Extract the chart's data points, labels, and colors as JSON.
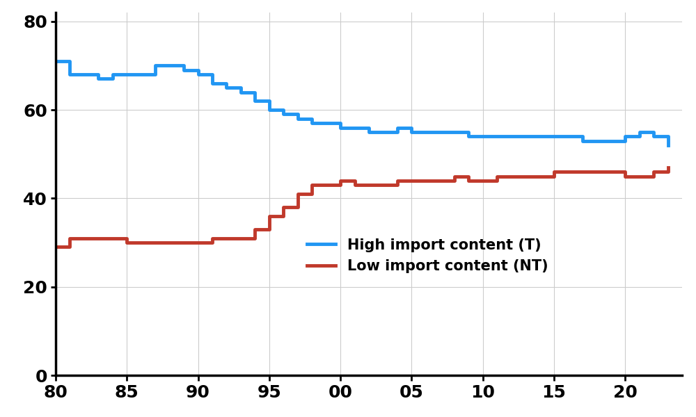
{
  "high_import_years": [
    1980,
    1981,
    1982,
    1983,
    1984,
    1985,
    1986,
    1987,
    1988,
    1989,
    1990,
    1991,
    1992,
    1993,
    1994,
    1995,
    1996,
    1997,
    1998,
    1999,
    2000,
    2001,
    2002,
    2003,
    2004,
    2005,
    2006,
    2007,
    2008,
    2009,
    2010,
    2011,
    2012,
    2013,
    2014,
    2015,
    2016,
    2017,
    2018,
    2019,
    2020,
    2021,
    2022,
    2023
  ],
  "high_import_values": [
    71,
    68,
    68,
    67,
    68,
    68,
    68,
    70,
    70,
    69,
    68,
    66,
    65,
    64,
    62,
    60,
    59,
    58,
    57,
    57,
    56,
    56,
    55,
    55,
    56,
    55,
    55,
    55,
    55,
    54,
    54,
    54,
    54,
    54,
    54,
    54,
    54,
    53,
    53,
    53,
    54,
    55,
    54,
    52
  ],
  "low_import_values": [
    29,
    31,
    31,
    31,
    31,
    30,
    30,
    30,
    30,
    30,
    30,
    31,
    31,
    31,
    33,
    36,
    38,
    41,
    43,
    43,
    44,
    43,
    43,
    43,
    44,
    44,
    44,
    44,
    45,
    44,
    44,
    45,
    45,
    45,
    45,
    46,
    46,
    46,
    46,
    46,
    45,
    45,
    46,
    47
  ],
  "high_color": "#2196F3",
  "low_color": "#C0392B",
  "line_width": 3.5,
  "legend_high": "High import content (T)",
  "legend_low": "Low import content (NT)",
  "yticks": [
    0,
    20,
    40,
    60,
    80
  ],
  "grid_color": "#cccccc",
  "background_color": "#ffffff",
  "legend_fontsize": 15,
  "tick_fontsize": 18
}
